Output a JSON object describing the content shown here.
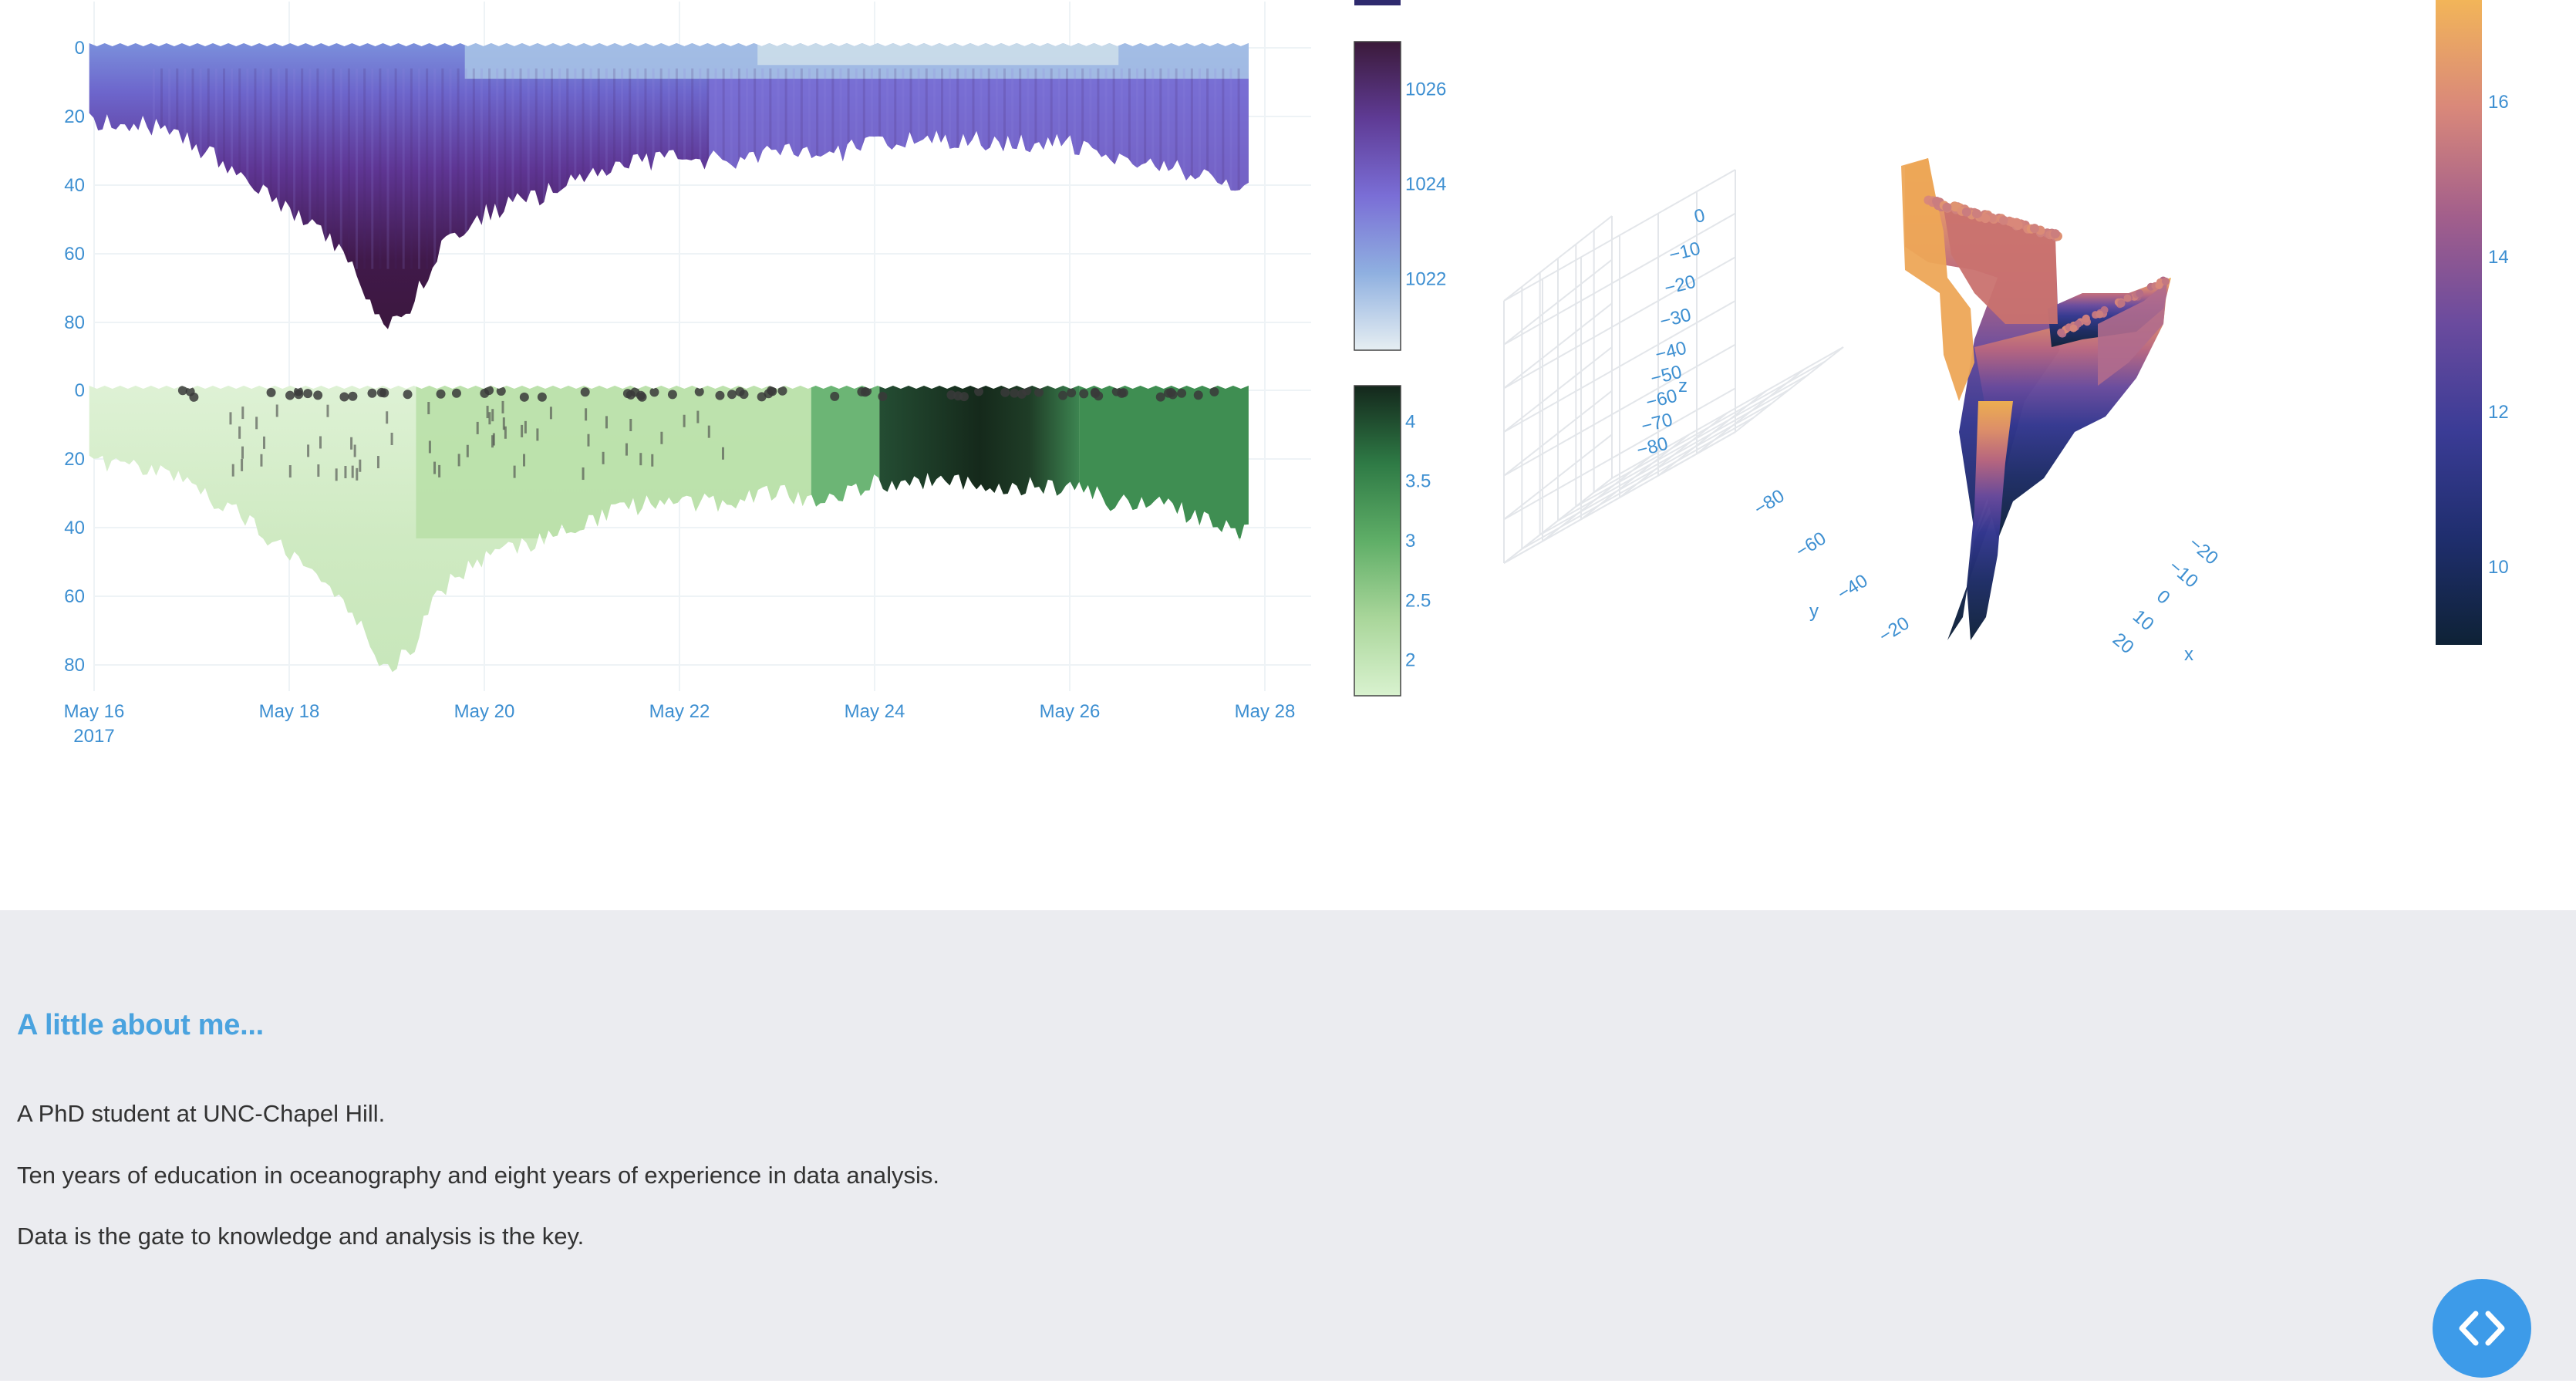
{
  "chart_data": [
    {
      "type": "heatmap",
      "panel": "top-time-depth",
      "x_ticks": [
        "May 16",
        "May 18",
        "May 20",
        "May 22",
        "May 24",
        "May 26",
        "May 28"
      ],
      "x_tick_year": "2017",
      "y_ticks": [
        "0",
        "20",
        "40",
        "60",
        "80"
      ],
      "y_reversed": true,
      "x_range": [
        "2017-05-16",
        "2017-05-28"
      ],
      "y_range": [
        0,
        85
      ],
      "max_depth_profile": [
        [
          "2017-05-16T12:00",
          22
        ],
        [
          "2017-05-17T00:00",
          28
        ],
        [
          "2017-05-17T12:00",
          36
        ],
        [
          "2017-05-18T00:00",
          48
        ],
        [
          "2017-05-18T12:00",
          58
        ],
        [
          "2017-05-18T18:00",
          70
        ],
        [
          "2017-05-19T00:00",
          82
        ],
        [
          "2017-05-19T06:00",
          76
        ],
        [
          "2017-05-19T12:00",
          60
        ],
        [
          "2017-05-20T00:00",
          48
        ],
        [
          "2017-05-20T12:00",
          44
        ],
        [
          "2017-05-21T00:00",
          38
        ],
        [
          "2017-05-21T12:00",
          34
        ],
        [
          "2017-05-22T00:00",
          32
        ],
        [
          "2017-05-22T12:00",
          33
        ],
        [
          "2017-05-23T00:00",
          30
        ],
        [
          "2017-05-23T12:00",
          32
        ],
        [
          "2017-05-24T00:00",
          27
        ],
        [
          "2017-05-24T12:00",
          27
        ],
        [
          "2017-05-25T00:00",
          27
        ],
        [
          "2017-05-25T12:00",
          28
        ],
        [
          "2017-05-26T00:00",
          28
        ],
        [
          "2017-05-26T12:00",
          33
        ],
        [
          "2017-05-27T00:00",
          33
        ],
        [
          "2017-05-27T12:00",
          40
        ],
        [
          "2017-05-27T20:00",
          42
        ]
      ],
      "colorbar": {
        "ticks": [
          "1026",
          "1024",
          "1022"
        ],
        "range": [
          1020.5,
          1027
        ],
        "scale": [
          "#e6eef2",
          "#8fb0e0",
          "#7a6ed6",
          "#5f3b95",
          "#3b1a3a"
        ]
      }
    },
    {
      "type": "heatmap",
      "panel": "bottom-time-depth",
      "x_ticks": [
        "May 16",
        "May 18",
        "May 20",
        "May 22",
        "May 24",
        "May 26",
        "May 28"
      ],
      "x_tick_year": "2017",
      "y_ticks": [
        "0",
        "20",
        "40",
        "60",
        "80"
      ],
      "y_reversed": true,
      "max_depth_profile": [
        [
          "2017-05-16T12:00",
          22
        ],
        [
          "2017-05-17T00:00",
          28
        ],
        [
          "2017-05-17T12:00",
          36
        ],
        [
          "2017-05-18T00:00",
          48
        ],
        [
          "2017-05-18T12:00",
          58
        ],
        [
          "2017-05-18T18:00",
          70
        ],
        [
          "2017-05-19T00:00",
          82
        ],
        [
          "2017-05-19T06:00",
          76
        ],
        [
          "2017-05-19T12:00",
          60
        ],
        [
          "2017-05-20T00:00",
          48
        ],
        [
          "2017-05-20T12:00",
          44
        ],
        [
          "2017-05-21T00:00",
          38
        ],
        [
          "2017-05-21T12:00",
          34
        ],
        [
          "2017-05-22T00:00",
          32
        ],
        [
          "2017-05-22T12:00",
          33
        ],
        [
          "2017-05-23T00:00",
          30
        ],
        [
          "2017-05-23T12:00",
          32
        ],
        [
          "2017-05-24T00:00",
          27
        ],
        [
          "2017-05-24T12:00",
          27
        ],
        [
          "2017-05-25T00:00",
          27
        ],
        [
          "2017-05-25T12:00",
          28
        ],
        [
          "2017-05-26T00:00",
          28
        ],
        [
          "2017-05-26T12:00",
          33
        ],
        [
          "2017-05-27T00:00",
          33
        ],
        [
          "2017-05-27T12:00",
          40
        ],
        [
          "2017-05-27T20:00",
          42
        ]
      ],
      "colorbar": {
        "ticks": [
          "4",
          "3.5",
          "3",
          "2.5",
          "2"
        ],
        "range": [
          1.7,
          4.3
        ],
        "scale": [
          "#d9f2cf",
          "#a9d69a",
          "#5fae67",
          "#2e7a45",
          "#14271c"
        ]
      }
    },
    {
      "type": "scatter",
      "panel": "3d-scatter",
      "axis_titles": {
        "x": "x",
        "y": "y",
        "z": "z"
      },
      "z_ticks": [
        "0",
        "−10",
        "−20",
        "−30",
        "−40",
        "−50",
        "−60",
        "−70",
        "−80"
      ],
      "y_ticks": [
        "−80",
        "−60",
        "−40",
        "−20"
      ],
      "x_ticks": [
        "−20",
        "−10",
        "0",
        "10",
        "20"
      ],
      "colorbar": {
        "ticks": [
          "16",
          "14",
          "12",
          "10"
        ],
        "scale": [
          "#0e2236",
          "#1f2e6e",
          "#3b3c96",
          "#6b4b9e",
          "#a35f8b",
          "#d9887a",
          "#f2b559"
        ]
      }
    }
  ],
  "about": {
    "title": "A little about me...",
    "lines": [
      "A PhD student at UNC-Chapel Hill.",
      "Ten years of education in oceanography and eight years of experience in data analysis.",
      "Data is the gate to knowledge and analysis is the key."
    ]
  },
  "code_button": {
    "icon": "code-icon",
    "color": "#3d9be9"
  },
  "colors": {
    "accent": "#4aa3df",
    "tick": "#3d8fd1",
    "section_bg": "#ebecf0"
  }
}
